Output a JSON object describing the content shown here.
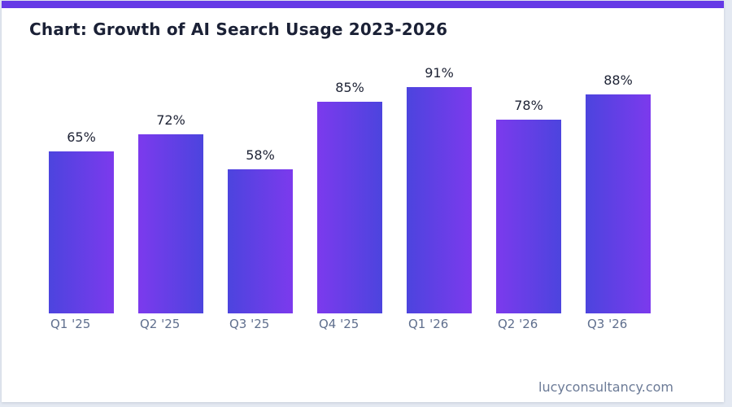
{
  "page": {
    "title": "Chart: Growth of AI Search Usage 2023-2026",
    "footer": "lucyconsultancy.com"
  },
  "colors": {
    "page_background": "#e4e9f2",
    "card_background": "#ffffff",
    "accent_bar": "#6539e6",
    "bar_gradient_start": "#4c44de",
    "bar_gradient_end": "#7c3aed",
    "title_text": "#1b2136",
    "value_label_text": "#1e2335",
    "axis_label_text": "#5f6f8e",
    "footer_text": "#6c7b97"
  },
  "chart_data": {
    "type": "bar",
    "title": "Chart: Growth of AI Search Usage 2023-2026",
    "categories": [
      "Q1 '25",
      "Q2 '25",
      "Q3 '25",
      "Q4 '25",
      "Q1 '26",
      "Q2 '26",
      "Q3 '26"
    ],
    "values": [
      65,
      72,
      58,
      85,
      91,
      78,
      88
    ],
    "value_labels": [
      "65%",
      "72%",
      "58%",
      "85%",
      "91%",
      "78%",
      "88%"
    ],
    "unit": "%",
    "ylabel": "",
    "xlabel": "",
    "ylim": [
      0,
      100
    ],
    "grid": false,
    "legend": false,
    "bar_gradient_alternates": true
  }
}
